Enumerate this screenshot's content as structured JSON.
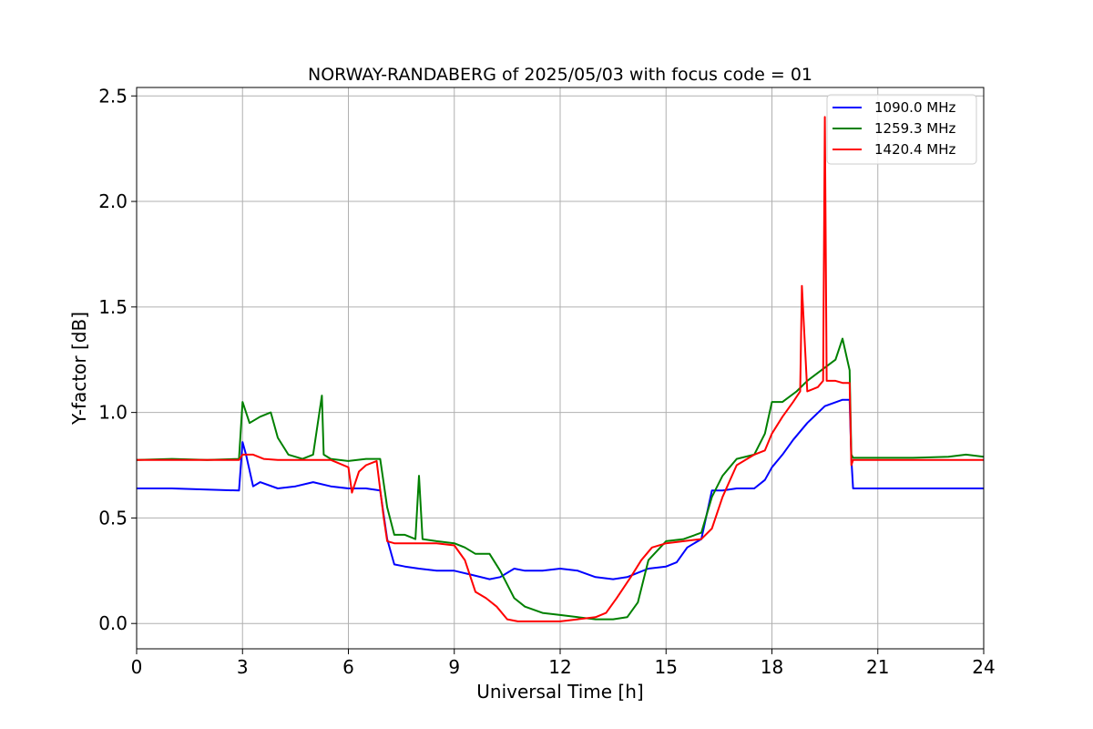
{
  "chart_data": {
    "type": "line",
    "title": "NORWAY-RANDABERG of 2025/05/03 with focus code = 01",
    "xlabel": "Universal Time [h]",
    "ylabel": "Y-factor [dB]",
    "xlim": [
      0,
      24
    ],
    "ylim": [
      -0.12,
      2.54
    ],
    "xticks": [
      0,
      3,
      6,
      9,
      12,
      15,
      18,
      21,
      24
    ],
    "xtick_labels": [
      "0",
      "3",
      "6",
      "9",
      "12",
      "15",
      "18",
      "21",
      "24"
    ],
    "yticks": [
      0.0,
      0.5,
      1.0,
      1.5,
      2.0,
      2.5
    ],
    "ytick_labels": [
      "0.0",
      "0.5",
      "1.0",
      "1.5",
      "2.0",
      "2.5"
    ],
    "grid": true,
    "legend_position": "top-right",
    "series": [
      {
        "name": "1090.0 MHz",
        "color": "#0000ff",
        "x": [
          0,
          1,
          2,
          2.9,
          3.0,
          3.1,
          3.3,
          3.5,
          4.0,
          4.5,
          5.0,
          5.5,
          6.0,
          6.5,
          6.9,
          7.1,
          7.3,
          7.6,
          8.0,
          8.5,
          9.0,
          9.5,
          10.0,
          10.3,
          10.7,
          11.0,
          11.5,
          12.0,
          12.5,
          13.0,
          13.5,
          13.9,
          14.2,
          14.5,
          15.0,
          15.3,
          15.6,
          16.0,
          16.3,
          16.6,
          17.0,
          17.5,
          17.8,
          18.0,
          18.3,
          18.6,
          19.0,
          19.5,
          20.0,
          20.2,
          20.25,
          20.3,
          21,
          22,
          23,
          24
        ],
        "y": [
          0.64,
          0.64,
          0.635,
          0.63,
          0.86,
          0.8,
          0.65,
          0.67,
          0.64,
          0.65,
          0.67,
          0.65,
          0.64,
          0.64,
          0.63,
          0.4,
          0.28,
          0.27,
          0.26,
          0.25,
          0.25,
          0.23,
          0.21,
          0.22,
          0.26,
          0.25,
          0.25,
          0.26,
          0.25,
          0.22,
          0.21,
          0.22,
          0.24,
          0.26,
          0.27,
          0.29,
          0.36,
          0.4,
          0.63,
          0.63,
          0.64,
          0.64,
          0.68,
          0.74,
          0.8,
          0.87,
          0.95,
          1.03,
          1.06,
          1.06,
          0.78,
          0.64,
          0.64,
          0.64,
          0.64,
          0.64
        ]
      },
      {
        "name": "1259.3 MHz",
        "color": "#008000",
        "x": [
          0,
          1,
          2,
          2.9,
          3.0,
          3.2,
          3.5,
          3.8,
          4.0,
          4.3,
          4.7,
          5.0,
          5.25,
          5.3,
          5.5,
          6.0,
          6.5,
          6.9,
          7.1,
          7.3,
          7.6,
          7.9,
          8.0,
          8.1,
          8.5,
          9.0,
          9.3,
          9.6,
          10.0,
          10.3,
          10.7,
          11.0,
          11.5,
          12.0,
          12.5,
          13.0,
          13.5,
          13.9,
          14.2,
          14.5,
          15.0,
          15.5,
          16.0,
          16.3,
          16.6,
          17.0,
          17.5,
          17.8,
          18.0,
          18.3,
          18.7,
          19.0,
          19.4,
          19.8,
          20.0,
          20.2,
          20.25,
          20.3,
          21,
          22,
          23,
          23.5,
          24
        ],
        "y": [
          0.775,
          0.78,
          0.775,
          0.78,
          1.05,
          0.95,
          0.98,
          1.0,
          0.88,
          0.8,
          0.78,
          0.8,
          1.08,
          0.8,
          0.78,
          0.77,
          0.78,
          0.78,
          0.55,
          0.42,
          0.42,
          0.4,
          0.7,
          0.4,
          0.39,
          0.38,
          0.36,
          0.33,
          0.33,
          0.25,
          0.12,
          0.08,
          0.05,
          0.04,
          0.03,
          0.02,
          0.02,
          0.03,
          0.1,
          0.3,
          0.39,
          0.4,
          0.43,
          0.6,
          0.7,
          0.78,
          0.8,
          0.9,
          1.05,
          1.05,
          1.1,
          1.15,
          1.2,
          1.25,
          1.35,
          1.2,
          0.8,
          0.785,
          0.785,
          0.785,
          0.79,
          0.8,
          0.79
        ]
      },
      {
        "name": "1420.4 MHz",
        "color": "#ff0000",
        "x": [
          0,
          1,
          2,
          2.9,
          3.0,
          3.3,
          3.6,
          4.0,
          4.5,
          5.0,
          5.5,
          6.0,
          6.1,
          6.3,
          6.5,
          6.8,
          7.0,
          7.1,
          7.3,
          7.6,
          8.0,
          8.5,
          9.0,
          9.3,
          9.6,
          9.9,
          10.2,
          10.5,
          10.8,
          11.0,
          11.5,
          12.0,
          12.5,
          13.0,
          13.3,
          13.6,
          14.0,
          14.3,
          14.6,
          15.0,
          15.5,
          16.0,
          16.3,
          16.6,
          17.0,
          17.5,
          17.8,
          18.0,
          18.3,
          18.6,
          18.8,
          18.85,
          19.0,
          19.3,
          19.45,
          19.5,
          19.55,
          19.8,
          20.0,
          20.2,
          20.25,
          20.3,
          21,
          22,
          23,
          24
        ],
        "y": [
          0.775,
          0.775,
          0.775,
          0.775,
          0.8,
          0.8,
          0.78,
          0.775,
          0.775,
          0.775,
          0.775,
          0.74,
          0.62,
          0.72,
          0.75,
          0.77,
          0.5,
          0.39,
          0.38,
          0.38,
          0.38,
          0.38,
          0.37,
          0.3,
          0.15,
          0.12,
          0.08,
          0.02,
          0.01,
          0.01,
          0.01,
          0.01,
          0.02,
          0.03,
          0.05,
          0.12,
          0.22,
          0.3,
          0.36,
          0.38,
          0.39,
          0.4,
          0.45,
          0.6,
          0.75,
          0.8,
          0.82,
          0.9,
          0.98,
          1.05,
          1.1,
          1.6,
          1.1,
          1.12,
          1.15,
          2.4,
          1.15,
          1.15,
          1.14,
          1.14,
          0.75,
          0.775,
          0.775,
          0.775,
          0.775,
          0.775
        ]
      }
    ]
  }
}
